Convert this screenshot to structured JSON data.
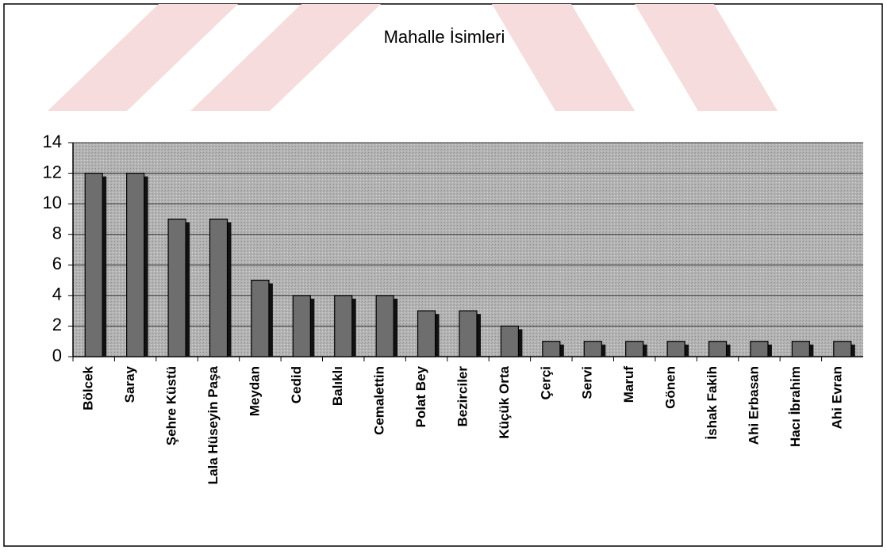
{
  "chart_data": {
    "type": "bar",
    "title": "Mahalle İsimleri",
    "categories": [
      "Bölcek",
      "Saray",
      "Şehre Küstü",
      "Lala Hüseyin Paşa",
      "Meydan",
      "Cedid",
      "Balıklı",
      "Cemalettin",
      "Polat Bey",
      "Bezirciler",
      "Küçük Orta",
      "Çerçi",
      "Servi",
      "Maruf",
      "Gönen",
      "İshak Fakih",
      "Ahi Erbasan",
      "Hacı İbrahim",
      "Ahi Evran"
    ],
    "values": [
      12,
      12,
      9,
      9,
      5,
      4,
      4,
      4,
      3,
      3,
      2,
      1,
      1,
      1,
      1,
      1,
      1,
      1,
      1
    ],
    "color": "#6e6e6e",
    "ylim": [
      0,
      14
    ],
    "yticks": [
      0,
      2,
      4,
      6,
      8,
      10,
      12,
      14
    ],
    "grid": true
  }
}
